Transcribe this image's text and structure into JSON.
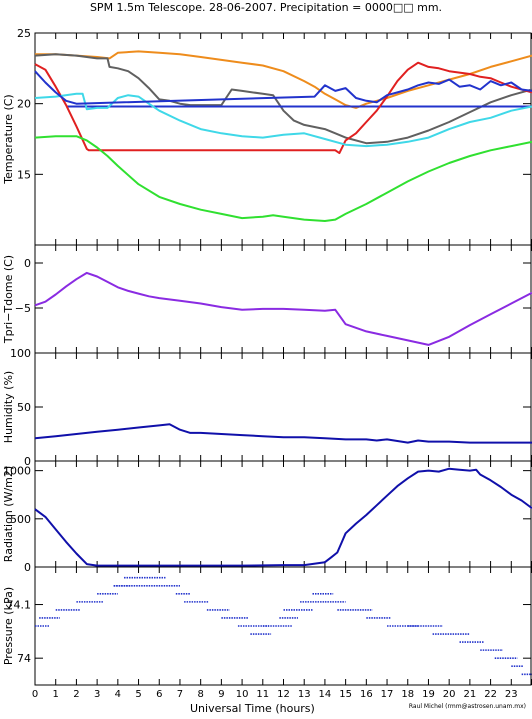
{
  "title": "SPM 1.5m Telescope. 28-06-2007. Precipitation = 0000□□ mm.",
  "credit": "Raul Michel (rmm@astrosen.unam.mx)",
  "chart_data": [
    {
      "type": "line",
      "panel": "temperature",
      "ylabel": "Temperature (C)",
      "ylim": [
        10,
        25
      ],
      "yticks": [
        15,
        20,
        25
      ],
      "xlim": [
        0,
        24
      ],
      "series": [
        {
          "color": "#ee8c1c",
          "x": [
            0,
            1,
            2,
            3,
            3.6,
            4,
            5,
            6,
            7,
            8,
            9,
            10,
            11,
            12,
            13,
            13.5,
            14,
            14.5,
            15,
            15.5,
            16,
            17,
            18,
            19,
            20,
            21,
            22,
            23,
            24
          ],
          "y": [
            23.5,
            23.5,
            23.4,
            23.3,
            23.2,
            23.6,
            23.7,
            23.6,
            23.5,
            23.3,
            23.1,
            22.9,
            22.7,
            22.3,
            21.6,
            21.2,
            20.7,
            20.3,
            19.9,
            19.7,
            20.0,
            20.4,
            20.9,
            21.3,
            21.7,
            22.1,
            22.6,
            23.0,
            23.4
          ]
        },
        {
          "color": "#606060",
          "x": [
            0,
            1,
            2,
            3,
            3.5,
            3.6,
            4,
            4.5,
            5,
            5.5,
            6,
            6.5,
            7,
            7.5,
            8,
            9,
            9.5,
            10,
            11,
            11.5,
            12,
            12.5,
            13,
            14,
            14.5,
            15,
            16,
            17,
            18,
            19,
            20,
            21,
            22,
            23,
            24
          ],
          "y": [
            23.4,
            23.5,
            23.4,
            23.2,
            23.2,
            22.6,
            22.5,
            22.3,
            21.8,
            21.1,
            20.3,
            20.2,
            20.0,
            19.9,
            19.9,
            19.9,
            21.0,
            20.9,
            20.7,
            20.6,
            19.5,
            18.8,
            18.5,
            18.2,
            17.9,
            17.6,
            17.2,
            17.3,
            17.6,
            18.1,
            18.7,
            19.4,
            20.1,
            20.6,
            21.0
          ]
        },
        {
          "color": "#2233cc",
          "x": [
            1.5,
            24
          ],
          "y": [
            19.8,
            19.8
          ]
        },
        {
          "color": "#e02020",
          "x": [
            0,
            0.5,
            1,
            1.5,
            2,
            2.5,
            2.6,
            14.5,
            14.7,
            15,
            15.5,
            16,
            16.5,
            17,
            17.5,
            18,
            18.5,
            19,
            19.5,
            20,
            20.5,
            21,
            21.5,
            22,
            22.5,
            23,
            24
          ],
          "y": [
            22.8,
            22.4,
            21.2,
            19.9,
            18.4,
            16.8,
            16.7,
            16.7,
            16.5,
            17.4,
            17.9,
            18.7,
            19.5,
            20.5,
            21.6,
            22.4,
            22.9,
            22.6,
            22.5,
            22.3,
            22.2,
            22.1,
            21.9,
            21.8,
            21.5,
            21.2,
            20.8
          ]
        },
        {
          "color": "#3fd8e8",
          "x": [
            0,
            1,
            2,
            2.3,
            2.5,
            3,
            3.5,
            4,
            4.5,
            5,
            5.5,
            6,
            7,
            8,
            9,
            10,
            11,
            12,
            13,
            14,
            15,
            16,
            17,
            18,
            19,
            20,
            21,
            22,
            23,
            24
          ],
          "y": [
            20.4,
            20.5,
            20.7,
            20.7,
            19.6,
            19.7,
            19.7,
            20.4,
            20.6,
            20.5,
            20.0,
            19.5,
            18.8,
            18.2,
            17.9,
            17.7,
            17.6,
            17.8,
            17.9,
            17.5,
            17.1,
            17.0,
            17.1,
            17.3,
            17.6,
            18.2,
            18.7,
            19.0,
            19.5,
            19.8
          ]
        },
        {
          "color": "#30e030",
          "x": [
            0,
            1,
            2,
            2.5,
            3,
            3.5,
            4,
            5,
            6,
            7,
            8,
            9,
            10,
            11,
            11.5,
            12,
            13,
            14,
            14.5,
            15,
            16,
            17,
            18,
            19,
            20,
            21,
            22,
            23,
            24
          ],
          "y": [
            17.6,
            17.7,
            17.7,
            17.4,
            16.9,
            16.3,
            15.6,
            14.3,
            13.4,
            12.9,
            12.5,
            12.2,
            11.9,
            12.0,
            12.1,
            12.0,
            11.8,
            11.7,
            11.8,
            12.2,
            12.9,
            13.7,
            14.5,
            15.2,
            15.8,
            16.3,
            16.7,
            17.0,
            17.3
          ]
        },
        {
          "color": "#2233cc",
          "x": [
            0,
            0.5,
            1,
            1.5,
            2,
            13.5,
            14,
            14.5,
            15,
            15.5,
            16,
            16.5,
            17,
            17.5,
            18,
            18.5,
            19,
            19.5,
            20,
            20.5,
            21,
            21.5,
            22,
            22.5,
            23,
            23.5,
            24
          ],
          "y": [
            22.3,
            21.5,
            20.8,
            20.2,
            20.0,
            20.5,
            21.3,
            20.9,
            21.1,
            20.4,
            20.2,
            20.1,
            20.6,
            20.8,
            21.0,
            21.3,
            21.5,
            21.4,
            21.7,
            21.2,
            21.3,
            21.0,
            21.6,
            21.3,
            21.5,
            21.0,
            20.9
          ]
        }
      ]
    },
    {
      "type": "line",
      "panel": "tpri-tdome",
      "ylabel": "Tpri−Tdome (C)",
      "ylim": [
        -10,
        2
      ],
      "yticks": [
        -5,
        0
      ],
      "ytick_labels": [
        "−5",
        "0"
      ],
      "xlim": [
        0,
        24
      ],
      "series": [
        {
          "color": "#8a2be2",
          "x": [
            0,
            0.5,
            1,
            1.5,
            2,
            2.5,
            3,
            3.5,
            4,
            4.5,
            5,
            5.5,
            6,
            7,
            8,
            9,
            10,
            11,
            12,
            13,
            14,
            14.5,
            15,
            16,
            17,
            18,
            19,
            20,
            21,
            22,
            23,
            24
          ],
          "y": [
            -4.7,
            -4.3,
            -3.5,
            -2.6,
            -1.8,
            -1.1,
            -1.5,
            -2.1,
            -2.7,
            -3.1,
            -3.4,
            -3.7,
            -3.9,
            -4.2,
            -4.5,
            -4.9,
            -5.2,
            -5.1,
            -5.1,
            -5.2,
            -5.3,
            -5.2,
            -6.8,
            -7.6,
            -8.1,
            -8.6,
            -9.1,
            -8.2,
            -6.9,
            -5.7,
            -4.5,
            -3.3
          ]
        }
      ]
    },
    {
      "type": "line",
      "panel": "humidity",
      "ylabel": "Humidity (%)",
      "ylim": [
        0,
        100
      ],
      "yticks": [
        0,
        50,
        100
      ],
      "xlim": [
        0,
        24
      ],
      "series": [
        {
          "color": "#1010aa",
          "x": [
            0,
            1,
            2,
            3,
            4,
            5,
            6,
            6.5,
            7,
            7.5,
            8,
            9,
            10,
            11,
            12,
            13,
            14,
            15,
            16,
            16.5,
            17,
            18,
            18.5,
            19,
            20,
            21,
            22,
            23,
            24
          ],
          "y": [
            21,
            23,
            25,
            27,
            29,
            31,
            33,
            34,
            29,
            26,
            26,
            25,
            24,
            23,
            22,
            22,
            21,
            20,
            20,
            19,
            20,
            17,
            19,
            18,
            18,
            17,
            17,
            17,
            17
          ]
        }
      ]
    },
    {
      "type": "line",
      "panel": "radiation",
      "ylabel": "Radiation (W/m2)",
      "ylim": [
        0,
        1100
      ],
      "yticks": [
        0,
        500,
        1000
      ],
      "xlim": [
        0,
        24
      ],
      "series": [
        {
          "color": "#1010aa",
          "x": [
            0,
            0.5,
            1,
            1.5,
            2,
            2.5,
            3,
            4,
            6,
            8,
            10,
            12,
            13,
            14,
            14.3,
            14.6,
            14.8,
            15,
            15.5,
            16,
            16.5,
            17,
            17.5,
            18,
            18.5,
            19,
            19.5,
            20,
            20.5,
            21,
            21.3,
            21.5,
            22,
            22.5,
            23,
            23.5,
            24
          ],
          "y": [
            600,
            520,
            390,
            260,
            140,
            30,
            15,
            15,
            15,
            15,
            15,
            20,
            20,
            50,
            100,
            150,
            250,
            350,
            450,
            540,
            640,
            740,
            840,
            920,
            990,
            1000,
            990,
            1020,
            1010,
            1000,
            1010,
            960,
            900,
            830,
            750,
            690,
            610
          ]
        }
      ]
    },
    {
      "type": "scatter",
      "panel": "pressure",
      "ylabel": "Pressure (kPa)",
      "ylim": [
        73.95,
        74.17
      ],
      "yticks": [
        74.0,
        74.1
      ],
      "ytick_labels": [
        "74",
        "74.1"
      ],
      "xlim": [
        0,
        24
      ],
      "xticks": [
        0,
        1,
        2,
        3,
        4,
        5,
        6,
        7,
        8,
        9,
        10,
        11,
        12,
        13,
        14,
        15,
        16,
        17,
        18,
        19,
        20,
        21,
        22,
        23
      ],
      "xlabel": "Universal Time (hours)",
      "segments": [
        {
          "x0": 0.0,
          "x1": 0.7,
          "y": 74.06
        },
        {
          "x0": 0.2,
          "x1": 1.2,
          "y": 74.075
        },
        {
          "x0": 1.0,
          "x1": 2.2,
          "y": 74.09
        },
        {
          "x0": 2.0,
          "x1": 3.3,
          "y": 74.105
        },
        {
          "x0": 3.0,
          "x1": 4.0,
          "y": 74.12
        },
        {
          "x0": 3.8,
          "x1": 4.6,
          "y": 74.135
        },
        {
          "x0": 4.3,
          "x1": 6.3,
          "y": 74.15
        },
        {
          "x0": 3.8,
          "x1": 7.0,
          "y": 74.135
        },
        {
          "x0": 6.8,
          "x1": 7.5,
          "y": 74.12
        },
        {
          "x0": 7.2,
          "x1": 8.4,
          "y": 74.105
        },
        {
          "x0": 8.3,
          "x1": 9.4,
          "y": 74.09
        },
        {
          "x0": 9.0,
          "x1": 10.3,
          "y": 74.075
        },
        {
          "x0": 9.8,
          "x1": 11.3,
          "y": 74.06
        },
        {
          "x0": 10.4,
          "x1": 11.4,
          "y": 74.045
        },
        {
          "x0": 11.0,
          "x1": 12.4,
          "y": 74.06
        },
        {
          "x0": 11.8,
          "x1": 12.7,
          "y": 74.075
        },
        {
          "x0": 12.0,
          "x1": 13.4,
          "y": 74.09
        },
        {
          "x0": 12.8,
          "x1": 14.0,
          "y": 74.105
        },
        {
          "x0": 13.4,
          "x1": 14.4,
          "y": 74.12
        },
        {
          "x0": 14.0,
          "x1": 15.0,
          "y": 74.105
        },
        {
          "x0": 14.6,
          "x1": 16.3,
          "y": 74.09
        },
        {
          "x0": 16.0,
          "x1": 17.2,
          "y": 74.075
        },
        {
          "x0": 17.0,
          "x1": 18.5,
          "y": 74.06
        },
        {
          "x0": 18.0,
          "x1": 19.7,
          "y": 74.06
        },
        {
          "x0": 19.2,
          "x1": 21.0,
          "y": 74.045
        },
        {
          "x0": 20.5,
          "x1": 21.7,
          "y": 74.03
        },
        {
          "x0": 21.5,
          "x1": 22.6,
          "y": 74.015
        },
        {
          "x0": 22.2,
          "x1": 23.3,
          "y": 74.0
        },
        {
          "x0": 23.0,
          "x1": 23.6,
          "y": 73.985
        },
        {
          "x0": 23.5,
          "x1": 24.0,
          "y": 73.97
        }
      ]
    }
  ]
}
